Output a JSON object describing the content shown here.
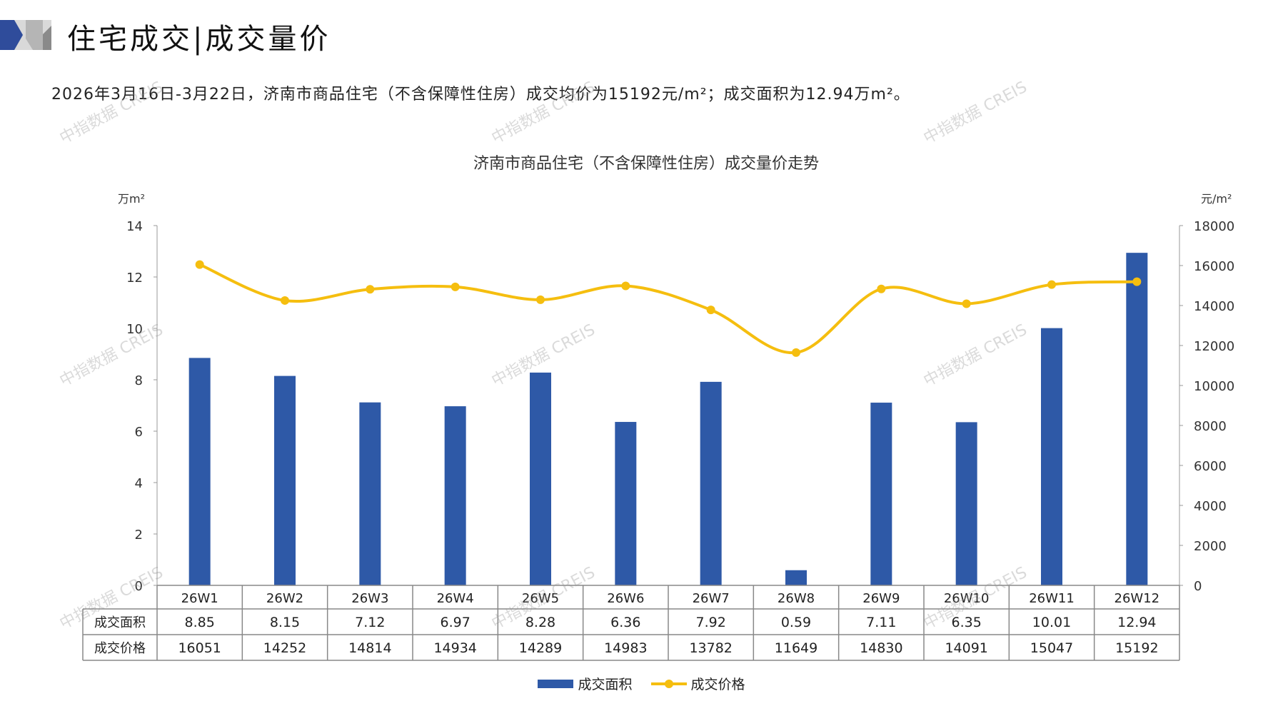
{
  "header": {
    "title": "住宅成交|成交量价"
  },
  "summary": "2026年3月16日-3月22日，济南市商品住宅（不含保障性住房）成交均价为15192元/m²；成交面积为12.94万m²。",
  "watermark": "中指数据 CREIS",
  "colors": {
    "bar": "#2E59A7",
    "line": "#F5BE0F",
    "brand_blue": "#2F4C9B",
    "brand_gray": "#9A9A9A"
  },
  "chart_data": {
    "type": "bar+line",
    "title": "济南市商品住宅（不含保障性住房）成交量价走势",
    "ylabel_left": "万m²",
    "ylabel_right": "元/m²",
    "ylim_left": [
      0,
      14
    ],
    "yticks_left": [
      "0",
      "2",
      "4",
      "6",
      "8",
      "10",
      "12",
      "14"
    ],
    "ylim_right": [
      0,
      18000
    ],
    "yticks_right": [
      "0",
      "2000",
      "4000",
      "6000",
      "8000",
      "10000",
      "12000",
      "14000",
      "16000",
      "18000"
    ],
    "categories": [
      "26W1",
      "26W2",
      "26W3",
      "26W4",
      "26W5",
      "26W6",
      "26W7",
      "26W8",
      "26W9",
      "26W10",
      "26W11",
      "26W12"
    ],
    "series": [
      {
        "name": "成交面积",
        "type": "bar",
        "axis": "left",
        "values": [
          8.85,
          8.15,
          7.12,
          6.97,
          8.28,
          6.36,
          7.92,
          0.59,
          7.11,
          6.35,
          10.01,
          12.94
        ],
        "labels": [
          "8.85",
          "8.15",
          "7.12",
          "6.97",
          "8.28",
          "6.36",
          "7.92",
          "0.59",
          "7.11",
          "6.35",
          "10.01",
          "12.94"
        ]
      },
      {
        "name": "成交价格",
        "type": "line",
        "axis": "right",
        "values": [
          16051,
          14252,
          14814,
          14934,
          14289,
          14983,
          13782,
          11649,
          14830,
          14091,
          15047,
          15192
        ],
        "labels": [
          "16051",
          "14252",
          "14814",
          "14934",
          "14289",
          "14983",
          "13782",
          "11649",
          "14830",
          "14091",
          "15047",
          "15192"
        ]
      }
    ],
    "grid": false,
    "legend": "bottom"
  }
}
